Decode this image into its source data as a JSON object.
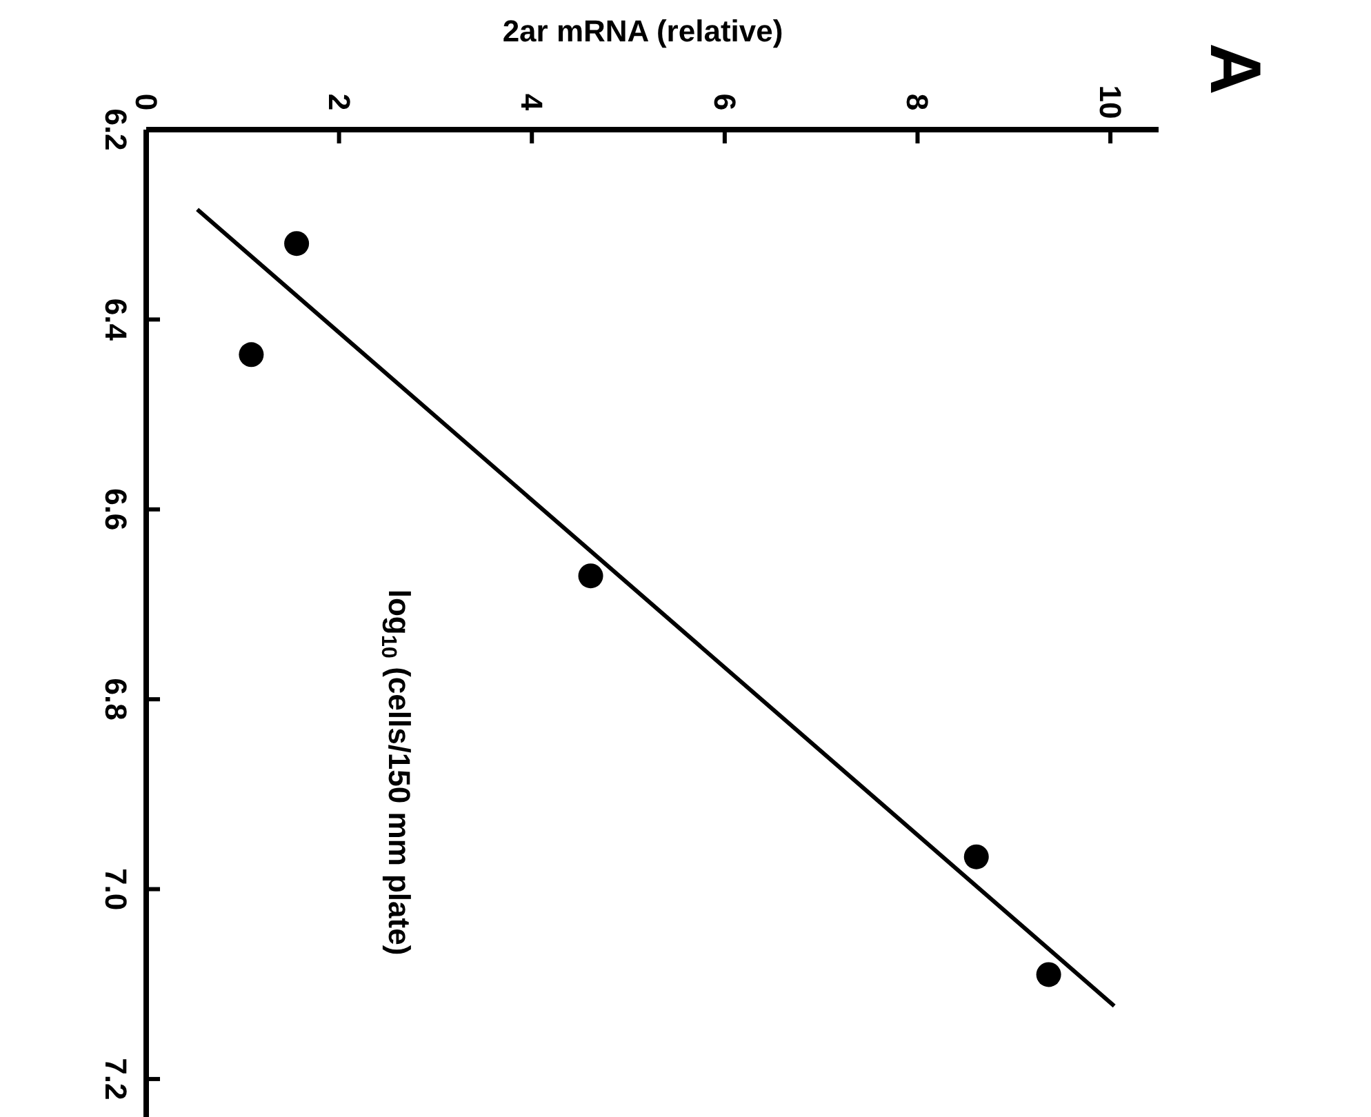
{
  "chart_data": {
    "type": "scatter",
    "xlabel": "2ar mRNA (relative)",
    "ylabel": "log$_{10}$ (cells/150 mm plate)",
    "annotations": [
      "A"
    ],
    "xlim": [
      0,
      10.5
    ],
    "xticks": [
      0,
      2,
      4,
      6,
      8,
      10
    ],
    "ylim": [
      7.24,
      6.2
    ],
    "yticks": [
      {
        "value": 6.2,
        "label": "6.2"
      },
      {
        "value": 6.4,
        "label": "6.4"
      },
      {
        "value": 6.6,
        "label": "6.6"
      },
      {
        "value": 6.8,
        "label": "6.8"
      },
      {
        "value": 7.0,
        "label": "7.0"
      },
      {
        "value": 7.2,
        "label": "7.2"
      }
    ],
    "marker": "circle",
    "series": [
      {
        "color": "#000000",
        "x": [
          1.56,
          1.09,
          4.61,
          8.61,
          9.36
        ],
        "values": [
          6.32,
          6.437,
          6.67,
          6.966,
          7.09
        ]
      },
      {
        "type": "line",
        "color": "#000000",
        "marker": "none",
        "line_style": "solid",
        "x": [
          0.53,
          10.04
        ],
        "values": [
          6.284,
          7.123
        ]
      }
    ]
  }
}
